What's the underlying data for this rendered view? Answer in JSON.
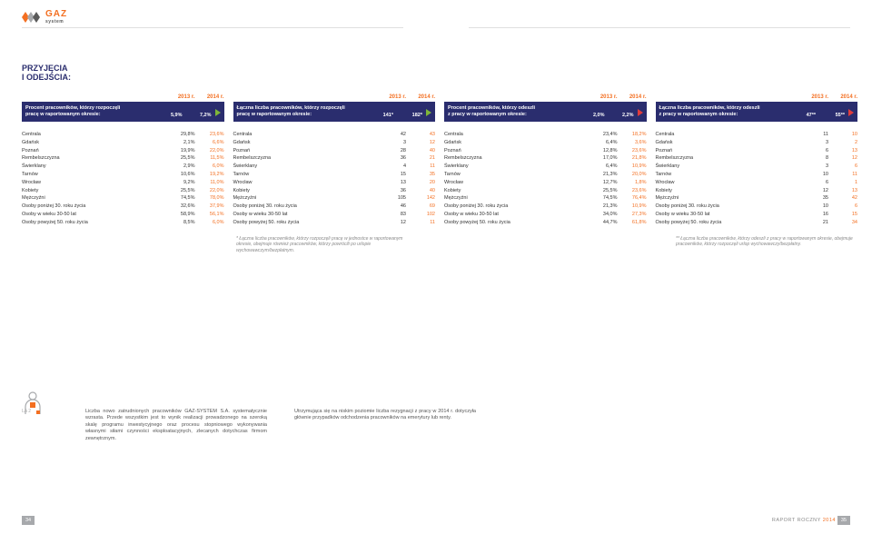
{
  "logo": {
    "brand": "GAZ",
    "sub": "system"
  },
  "heading": "PRZYJĘCIA\nI ODEJŚCIA:",
  "years": {
    "y1": "2013 r.",
    "y2": "2014 r."
  },
  "palette": {
    "navy": "#2a2d6e",
    "orange": "#f36f21",
    "grey": "#a7a9ac",
    "text": "#333333"
  },
  "blocks": [
    {
      "bar_label": "Procent pracowników, którzy rozpoczęli\npracę w raportowanym okresie:",
      "v1": "5,9%",
      "v2": "7,2%",
      "arrow_color": "#7fb539",
      "rows": [
        [
          "Centrala",
          "29,8%",
          "23,6%"
        ],
        [
          "Gdańsk",
          "2,1%",
          "6,6%"
        ],
        [
          "Poznań",
          "19,9%",
          "22,0%"
        ],
        [
          "Rembelszczyzna",
          "25,5%",
          "11,5%"
        ],
        [
          "Świerklany",
          "2,9%",
          "6,0%"
        ],
        [
          "Tarnów",
          "10,6%",
          "19,2%"
        ],
        [
          "Wrocław",
          "9,2%",
          "11,0%"
        ],
        [
          "Kobiety",
          "25,5%",
          "22,0%"
        ],
        [
          "Mężczyźni",
          "74,5%",
          "78,0%"
        ],
        [
          "Osoby poniżej 30. roku życia",
          "32,6%",
          "37,9%"
        ],
        [
          "Osoby w wieku 30-50 lat",
          "58,9%",
          "56,1%"
        ],
        [
          "Osoby powyżej 50. roku życia",
          "8,5%",
          "6,0%"
        ]
      ]
    },
    {
      "bar_label": "Łączna liczba pracowników, którzy rozpoczęli\npracę w raportowanym okresie:",
      "v1": "141*",
      "v2": "182*",
      "arrow_color": "#7fb539",
      "rows": [
        [
          "Centrala",
          "42",
          "43"
        ],
        [
          "Gdańsk",
          "3",
          "12"
        ],
        [
          "Poznań",
          "28",
          "40"
        ],
        [
          "Rembelszczyzna",
          "36",
          "21"
        ],
        [
          "Świerklany",
          "4",
          "11"
        ],
        [
          "Tarnów",
          "15",
          "35"
        ],
        [
          "Wrocław",
          "13",
          "20"
        ],
        [
          "Kobiety",
          "36",
          "40"
        ],
        [
          "Mężczyźni",
          "105",
          "142"
        ],
        [
          "Osoby poniżej 30. roku życia",
          "46",
          "69"
        ],
        [
          "Osoby w wieku 30-50 lat",
          "83",
          "102"
        ],
        [
          "Osoby powyżej 50. roku życia",
          "12",
          "11"
        ]
      ],
      "footnote": "* Łączna liczba pracowników, którzy rozpoczęli pracę w jednostce w raportowanym okresie, obejmuje również pracowników, którzy powrócili po urlopie wychowawczym/bezpłatnym."
    },
    {
      "bar_label": "Procent pracowników, którzy odeszli\nz pracy w raportowanym okresie:",
      "v1": "2,0%",
      "v2": "2,2%",
      "arrow_color": "#e03c3c",
      "rows": [
        [
          "Centrala",
          "23,4%",
          "18,2%"
        ],
        [
          "Gdańsk",
          "6,4%",
          "3,6%"
        ],
        [
          "Poznań",
          "12,8%",
          "23,6%"
        ],
        [
          "Rembelszczyzna",
          "17,0%",
          "21,8%"
        ],
        [
          "Świerklany",
          "6,4%",
          "10,9%"
        ],
        [
          "Tarnów",
          "21,3%",
          "20,0%"
        ],
        [
          "Wrocław",
          "12,7%",
          "1,8%"
        ],
        [
          "Kobiety",
          "25,5%",
          "23,6%"
        ],
        [
          "Mężczyźni",
          "74,5%",
          "76,4%"
        ],
        [
          "Osoby poniżej 30. roku życia",
          "21,3%",
          "10,9%"
        ],
        [
          "Osoby w wieku 30-50 lat",
          "34,0%",
          "27,3%"
        ],
        [
          "Osoby powyżej 50. roku życia",
          "44,7%",
          "61,8%"
        ]
      ]
    },
    {
      "bar_label": "Łączna liczba pracowników, którzy odeszli\nz pracy w raportowanym okresie:",
      "v1": "47**",
      "v2": "55**",
      "arrow_color": "#e03c3c",
      "rows": [
        [
          "Centrala",
          "11",
          "10"
        ],
        [
          "Gdańsk",
          "3",
          "2"
        ],
        [
          "Poznań",
          "6",
          "13"
        ],
        [
          "Rembelszczyzna",
          "8",
          "12"
        ],
        [
          "Świerklany",
          "3",
          "6"
        ],
        [
          "Tarnów",
          "10",
          "11"
        ],
        [
          "Wrocław",
          "6",
          "1"
        ],
        [
          "Kobiety",
          "12",
          "13"
        ],
        [
          "Mężczyźni",
          "35",
          "42"
        ],
        [
          "Osoby poniżej 30. roku życia",
          "10",
          "6"
        ],
        [
          "Osoby w wieku 30-50 lat",
          "16",
          "15"
        ],
        [
          "Osoby powyżej 50. roku życia",
          "21",
          "34"
        ]
      ],
      "footnote": "** Łączna liczba pracowników, którzy odeszli z pracy w raportowanym okresie, obejmuje pracowników, którzy rozpoczęli urlop wychowawczy/bezpłatny."
    }
  ],
  "la_tag": "LA 2",
  "bottom_paragraphs": [
    "Liczba nowo zatrudnionych pracowników GAZ-SYSTEM S.A. systematycznie wzrasta. Przede wszystkim jest to wynik realizacji prowadzonego na szeroką skalę programu inwestycyjnego oraz procesu stopniowego wykonywania własnymi siłami czynności eksploatacyjnych, zlecanych dotychczas firmom zewnętrznym.",
    "Utrzymująca się na niskim poziomie liczba rezygnacji z pracy w 2014 r. dotyczyła głównie przypadków odchodzenia pracowników na emerytury lub renty."
  ],
  "footer": {
    "page_left": "34",
    "page_right": "35",
    "raport": "RAPORT ROCZNY",
    "raport_year": "2014"
  }
}
